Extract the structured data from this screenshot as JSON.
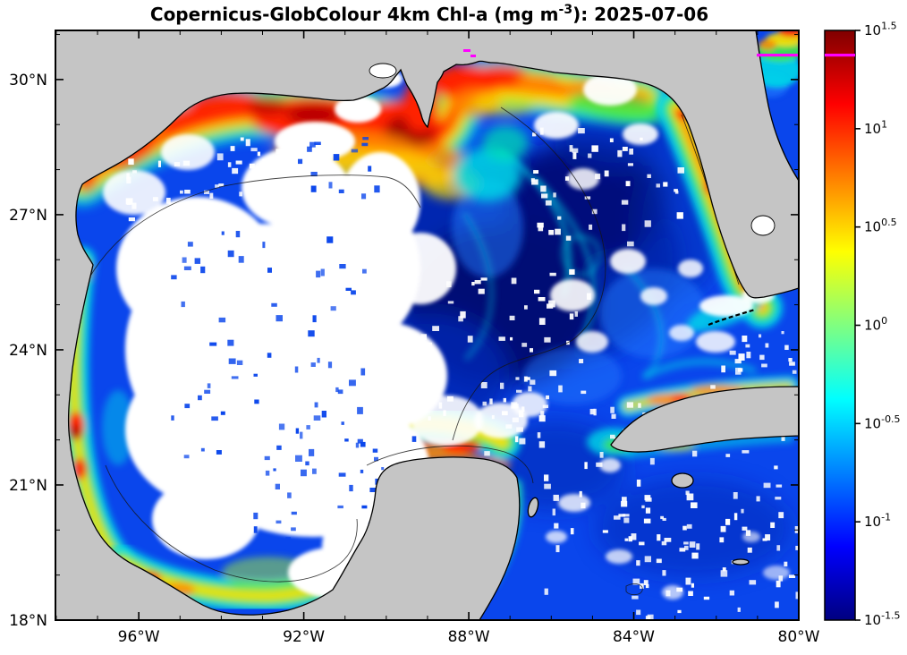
{
  "figure": {
    "title": {
      "prefix": "Copernicus-GlobColour 4km Chl-a (mg m",
      "exponent": "-3",
      "suffix": "): 2025-07-06"
    }
  },
  "axes": {
    "x": {
      "labels": [
        "96°W",
        "92°W",
        "88°W",
        "84°W",
        "80°W"
      ],
      "major": [
        96,
        92,
        88,
        84,
        80
      ],
      "minor_step": 1,
      "edge_values": [
        98.02,
        80.0
      ]
    },
    "y": {
      "labels": [
        "30°N",
        "27°N",
        "24°N",
        "21°N",
        "18°N"
      ],
      "major": [
        30,
        27,
        24,
        21,
        18
      ],
      "minor_step": 1,
      "edge_values": [
        31.09,
        18.0
      ]
    }
  },
  "colorbar": {
    "scale": "log10",
    "ticks": [
      {
        "base": "10",
        "exp": "1.5"
      },
      {
        "base": "10",
        "exp": "1"
      },
      {
        "base": "10",
        "exp": "0.5"
      },
      {
        "base": "10",
        "exp": "0"
      },
      {
        "base": "10",
        "exp": "-0.5"
      },
      {
        "base": "10",
        "exp": "-1"
      },
      {
        "base": "10",
        "exp": "-1.5"
      }
    ],
    "jet_stops": [
      "#800000",
      "#ff0000",
      "#ff8000",
      "#ffff00",
      "#80ff80",
      "#00ffff",
      "#0080ff",
      "#0000ff",
      "#000080"
    ]
  },
  "palette": {
    "land": "#c5c5c5",
    "missing_data": "#ffffff",
    "flag_line": "#ff00ff",
    "ocean_low_chl": "#000080",
    "ocean_mid": "#0a46ec"
  }
}
